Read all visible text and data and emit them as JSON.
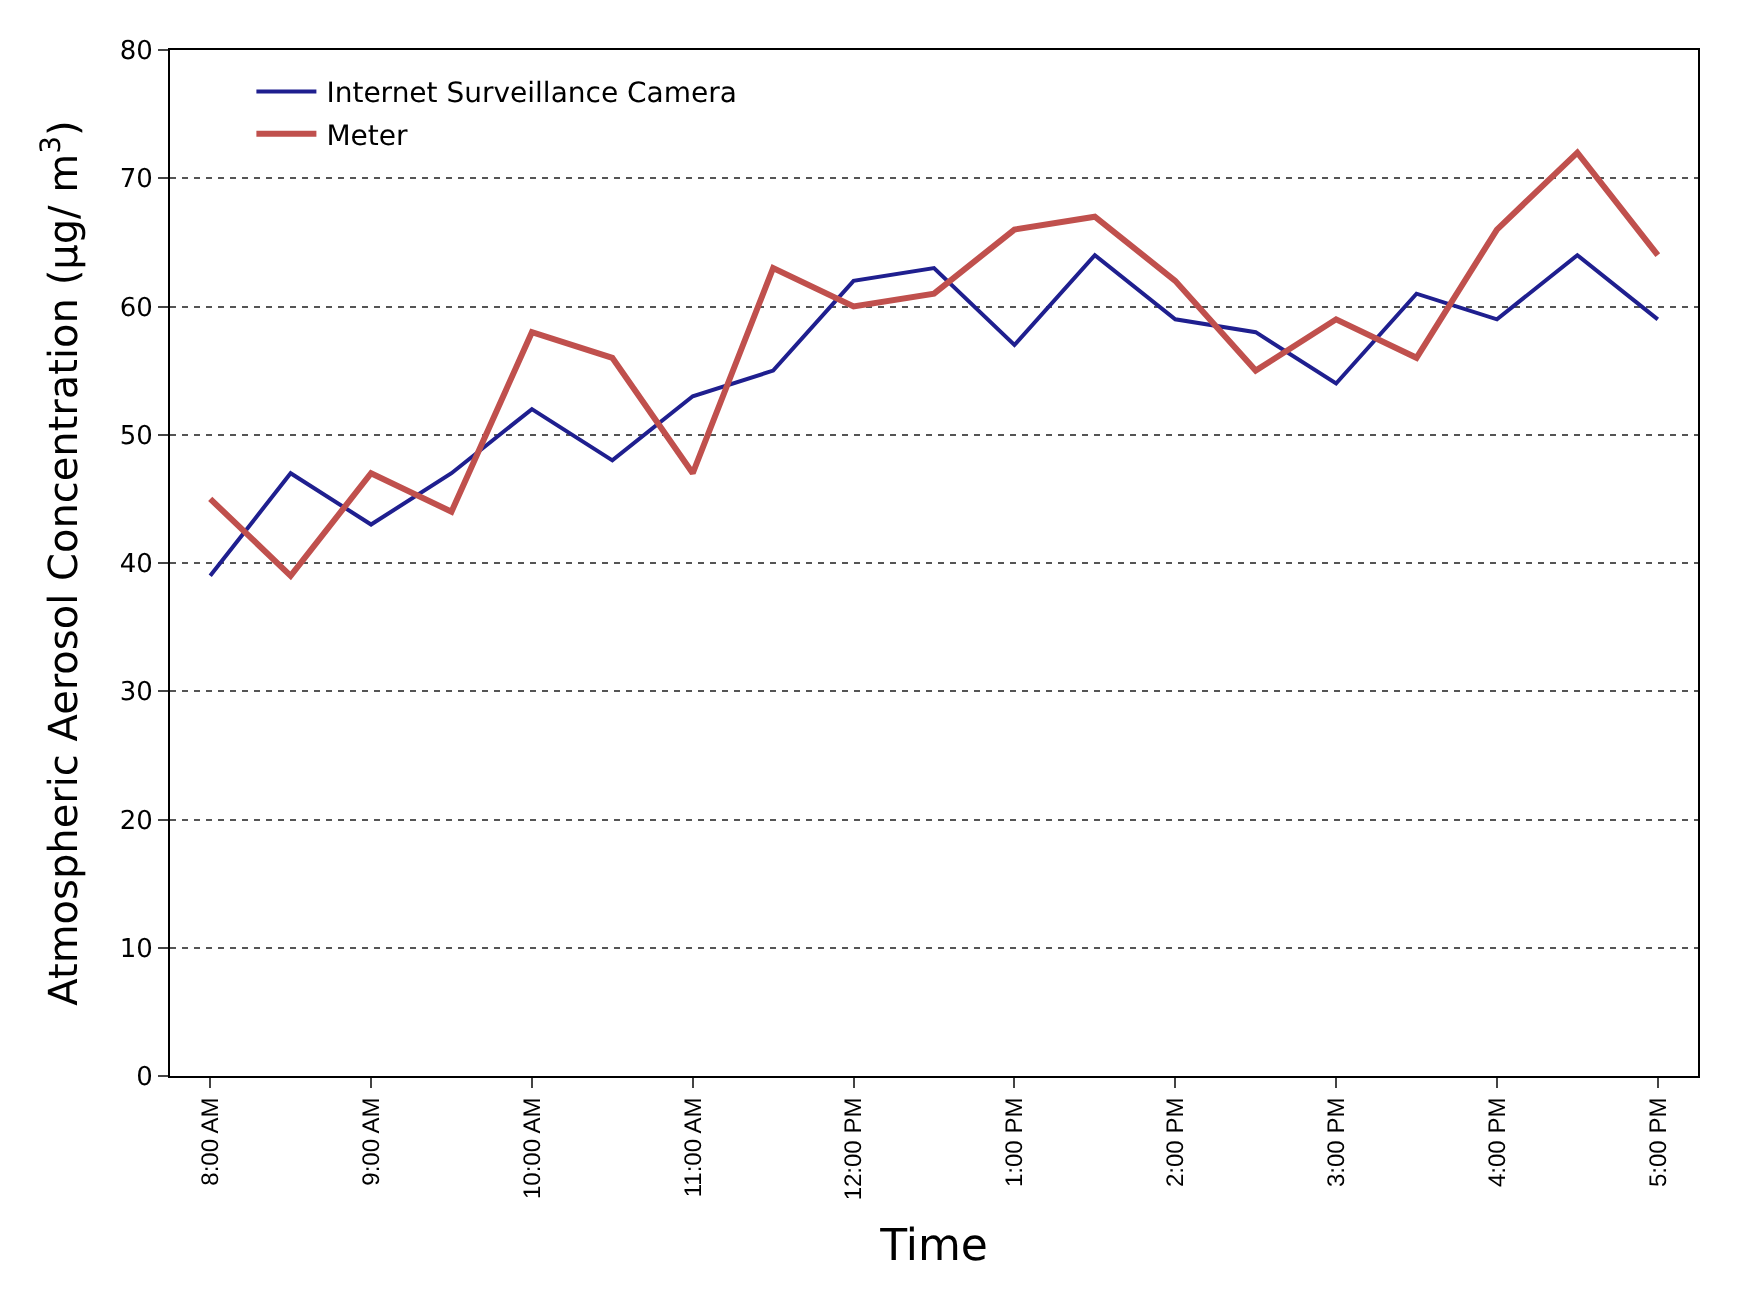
{
  "chart_data": {
    "type": "line",
    "xlabel": "Time",
    "ylabel": "Atmospheric Aerosol Concentration (µg/ m$^{3}$)",
    "categories": [
      "8:00 AM",
      null,
      "9:00 AM",
      null,
      "10:00 AM",
      null,
      "11:00 AM",
      null,
      "12:00 PM",
      null,
      "1:00 PM",
      null,
      "2:00 PM",
      null,
      "3:00 PM",
      null,
      "4:00 PM",
      null,
      "5:00 PM"
    ],
    "series": [
      {
        "name": "Internet Surveillance Camera",
        "color": "#1f1f8f",
        "values": [
          39,
          47,
          43,
          47,
          52,
          48,
          53,
          55,
          62,
          63,
          57,
          64,
          59,
          58,
          54,
          61,
          59,
          64,
          59
        ]
      },
      {
        "name": "Meter",
        "color": "#c0504d",
        "values": [
          45,
          39,
          47,
          44,
          58,
          56,
          47,
          63,
          60,
          61,
          66,
          67,
          62,
          55,
          59,
          56,
          66,
          72,
          64
        ]
      }
    ],
    "ylim": [
      0,
      80
    ],
    "yticks": [
      0,
      10,
      20,
      30,
      40,
      50,
      60,
      70,
      80
    ],
    "grid": "y",
    "legend": "top left",
    "marker": "none",
    "line_style": "solid"
  }
}
